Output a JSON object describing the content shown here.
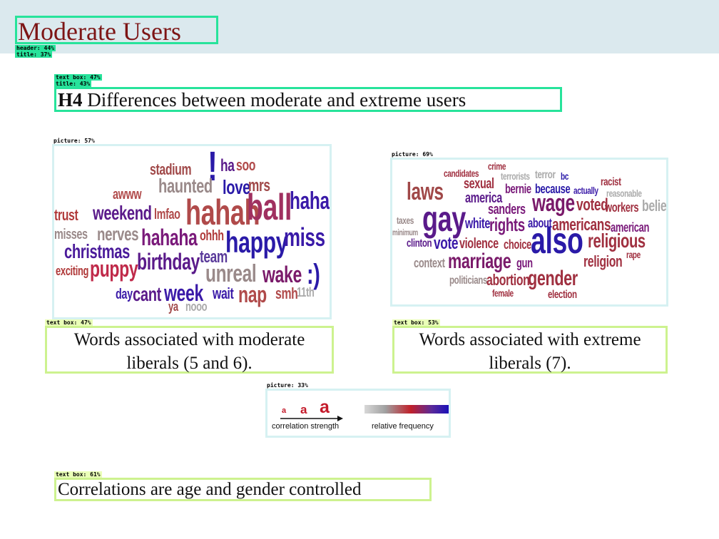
{
  "header": {
    "title": "Moderate Users",
    "tag": "header: 44%",
    "title_tag": "title: 37%"
  },
  "subtitle": {
    "tag": "text box: 47%",
    "title_tag": "title: 43%",
    "prefix": "H4",
    "text": " Differences between moderate and extreme users"
  },
  "pictures": {
    "left_tag": "picture: 57%",
    "right_tag": "picture: 69%",
    "legend_tag": "picture: 33%"
  },
  "captions": {
    "left_tag": "text box: 47%",
    "left_line1": "Words associated with moderate",
    "left_line2": "liberals (5 and 6).",
    "right_tag": "text box: 53%",
    "right_line1": "Words associated with extreme",
    "right_line2": "liberals (7)."
  },
  "legend": {
    "letters": [
      "a",
      "a",
      "a"
    ],
    "strength_label": "correlation strength",
    "frequency_label": "relative frequency"
  },
  "footer": {
    "tag": "text box: 61%",
    "text": "Correlations are age and gender controlled"
  },
  "cloud_left": [
    {
      "t": "stadium",
      "c": "#a04848"
    },
    {
      "t": "!",
      "c": "#2a1aa8"
    },
    {
      "t": "ha",
      "c": "#5a1a8a"
    },
    {
      "t": "soo",
      "c": "#b04a4a"
    },
    {
      "t": "haunted",
      "c": "#9a8a8a"
    },
    {
      "t": "love",
      "c": "#2a1aa8"
    },
    {
      "t": "mrs",
      "c": "#a04848"
    },
    {
      "t": "awww",
      "c": "#b04a4a"
    },
    {
      "t": "hahah",
      "c": "#b04a4a"
    },
    {
      "t": "ball",
      "c": "#a03060"
    },
    {
      "t": "haha",
      "c": "#3a1aa8"
    },
    {
      "t": "trust",
      "c": "#b03a3a"
    },
    {
      "t": "weekend",
      "c": "#5a1a8a"
    },
    {
      "t": "lmfao",
      "c": "#b04a4a"
    },
    {
      "t": "misses",
      "c": "#9a8a8a"
    },
    {
      "t": "nerves",
      "c": "#9a8a8a"
    },
    {
      "t": "hahaha",
      "c": "#7a1a7a"
    },
    {
      "t": "ohhh",
      "c": "#b03a3a"
    },
    {
      "t": "happy",
      "c": "#2a1aa8"
    },
    {
      "t": "miss",
      "c": "#3a1aa8"
    },
    {
      "t": "christmas",
      "c": "#4a1a9a"
    },
    {
      "t": "team",
      "c": "#5a3a9a"
    },
    {
      "t": "birthday",
      "c": "#5a1a8a"
    },
    {
      "t": "exciting",
      "c": "#b03a3a"
    },
    {
      "t": "puppy",
      "c": "#c02a4a"
    },
    {
      "t": "unreal",
      "c": "#9a8a8a"
    },
    {
      "t": "wake",
      "c": "#7a1a6a"
    },
    {
      "t": ":)",
      "c": "#2a1aa8"
    },
    {
      "t": "day",
      "c": "#3a1aa8"
    },
    {
      "t": "cant",
      "c": "#5a1a8a"
    },
    {
      "t": "week",
      "c": "#3a1aa8"
    },
    {
      "t": "wait",
      "c": "#3a1aa8"
    },
    {
      "t": "nap",
      "c": "#b04a4a"
    },
    {
      "t": "smh",
      "c": "#b04a4a"
    },
    {
      "t": "11th",
      "c": "#aaaaaa"
    },
    {
      "t": "ya",
      "c": "#a04848"
    },
    {
      "t": "nooo",
      "c": "#aaaaaa"
    }
  ],
  "cloud_right": [
    {
      "t": "crime",
      "c": "#a03040"
    },
    {
      "t": "candidates",
      "c": "#a03040"
    },
    {
      "t": "terrorists",
      "c": "#aaaaaa"
    },
    {
      "t": "terror",
      "c": "#aaaaaa"
    },
    {
      "t": "bc",
      "c": "#2a1aa8"
    },
    {
      "t": "laws",
      "c": "#a04848"
    },
    {
      "t": "sexual",
      "c": "#a03040"
    },
    {
      "t": "bernie",
      "c": "#7a1a7a"
    },
    {
      "t": "because",
      "c": "#2a1aa8"
    },
    {
      "t": "actually",
      "c": "#3a1aa8"
    },
    {
      "t": "racist",
      "c": "#a03040"
    },
    {
      "t": "reasonable",
      "c": "#aaaaaa"
    },
    {
      "t": "america",
      "c": "#5a1a8a"
    },
    {
      "t": "wage",
      "c": "#7a1a6a"
    },
    {
      "t": "voted",
      "c": "#a03040"
    },
    {
      "t": "workers",
      "c": "#a03040"
    },
    {
      "t": "belief",
      "c": "#aaaaaa"
    },
    {
      "t": "gay",
      "c": "#5a1a8a"
    },
    {
      "t": "sanders",
      "c": "#7a1a7a"
    },
    {
      "t": "taxes",
      "c": "#9a8a8a"
    },
    {
      "t": "minimum",
      "c": "#9a8a8a"
    },
    {
      "t": "white",
      "c": "#3a1aa8"
    },
    {
      "t": "rights",
      "c": "#7a1a7a"
    },
    {
      "t": "about",
      "c": "#3a1aa8"
    },
    {
      "t": "americans",
      "c": "#a03040"
    },
    {
      "t": "american",
      "c": "#7a1a7a"
    },
    {
      "t": "clinton",
      "c": "#5a1a8a"
    },
    {
      "t": "vote",
      "c": "#3a1aa8"
    },
    {
      "t": "violence",
      "c": "#a03040"
    },
    {
      "t": "choice",
      "c": "#a03040"
    },
    {
      "t": "also",
      "c": "#2a1aa8"
    },
    {
      "t": "religious",
      "c": "#a03040"
    },
    {
      "t": "rape",
      "c": "#a03040"
    },
    {
      "t": "context",
      "c": "#9a8a8a"
    },
    {
      "t": "marriage",
      "c": "#7a1a6a"
    },
    {
      "t": "gun",
      "c": "#7a1a7a"
    },
    {
      "t": "religion",
      "c": "#a03040"
    },
    {
      "t": "politicians",
      "c": "#9a8a8a"
    },
    {
      "t": "abortion",
      "c": "#a03040"
    },
    {
      "t": "gender",
      "c": "#a03040"
    },
    {
      "t": "female",
      "c": "#a03040"
    },
    {
      "t": "election",
      "c": "#a03040"
    }
  ]
}
